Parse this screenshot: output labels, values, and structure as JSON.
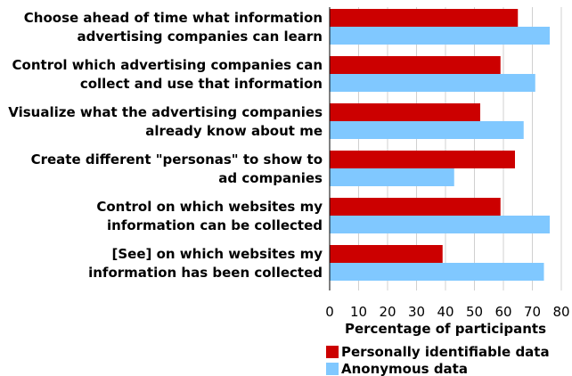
{
  "chart_data": {
    "type": "bar",
    "orientation": "horizontal",
    "categories": [
      [
        "Choose ahead of time what information",
        "advertising companies can learn"
      ],
      [
        "Control which advertising companies can",
        "collect and use that information"
      ],
      [
        "Visualize what the advertising companies",
        "already know about me"
      ],
      [
        "Create different \"personas\" to show to",
        "ad companies"
      ],
      [
        "Control on which websites my",
        "information can be collected"
      ],
      [
        "[See] on which websites my",
        "information has been collected"
      ]
    ],
    "series": [
      {
        "name": "Personally identifiable data",
        "color": "#cc0000",
        "values": [
          65,
          59,
          52,
          64,
          59,
          39
        ]
      },
      {
        "name": "Anonymous data",
        "color": "#80c8ff",
        "values": [
          76,
          71,
          67,
          43,
          76,
          74
        ]
      }
    ],
    "xlabel": "Percentage of participants",
    "xlim": [
      0,
      80
    ],
    "xticks": [
      0,
      10,
      20,
      30,
      40,
      50,
      60,
      70,
      80
    ],
    "grid": true,
    "legend_position": "bottom"
  }
}
